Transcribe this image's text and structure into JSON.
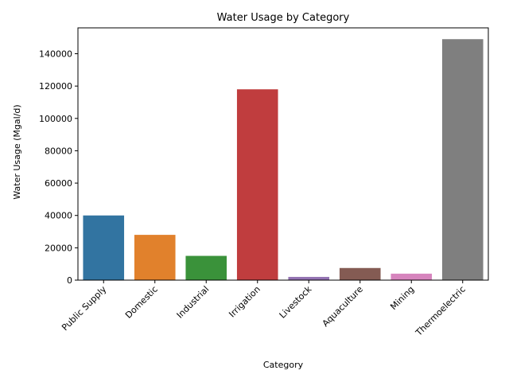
{
  "chart_data": {
    "type": "bar",
    "title": "Water Usage by Category",
    "xlabel": "Category",
    "ylabel": "Water Usage (Mgal/d)",
    "categories": [
      "Public Supply",
      "Domestic",
      "Industrial",
      "Irrigation",
      "Livestock",
      "Aquaculture",
      "Mining",
      "Thermoelectric"
    ],
    "values": [
      40000,
      28000,
      15000,
      118000,
      2000,
      7500,
      4000,
      149000
    ],
    "colors": [
      "#3274a1",
      "#e1812c",
      "#3a923a",
      "#c03d3e",
      "#9372b2",
      "#845b53",
      "#d684bd",
      "#7f7f7f"
    ],
    "ylim": [
      0,
      156000
    ],
    "yticks": [
      0,
      20000,
      40000,
      60000,
      80000,
      100000,
      120000,
      140000
    ],
    "grid": false,
    "legend": "none"
  }
}
